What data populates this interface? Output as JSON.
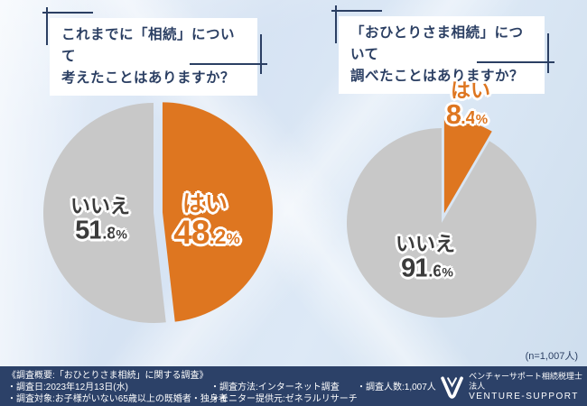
{
  "titles": {
    "left": "これまでに「相続」について\n考えたことはありますか？",
    "right": "「おひとりさま相続」について\n調べたことはありますか？"
  },
  "chart_data": [
    {
      "type": "pie",
      "title": "これまでに「相続」について考えたことはありますか？",
      "slices": [
        {
          "label": "はい",
          "value": 48.2,
          "color": "#de7620"
        },
        {
          "label": "いいえ",
          "value": 51.8,
          "color": "#c8c8c8"
        }
      ],
      "start_angle_deg": 0,
      "exploded_slice": "はい",
      "n": 1007
    },
    {
      "type": "pie",
      "title": "「おひとりさま相続」について調べたことはありますか？",
      "slices": [
        {
          "label": "はい",
          "value": 8.4,
          "color": "#de7620"
        },
        {
          "label": "いいえ",
          "value": 91.6,
          "color": "#c8c8c8"
        }
      ],
      "start_angle_deg": 0,
      "exploded_slice": "はい",
      "n": 1007
    }
  ],
  "sample_note": "(n=1,007人)",
  "footer": {
    "heading": "《調査概要:「おひとりさま相続」に関する調査》",
    "survey_date": "・調査日:2023年12月13日(水)",
    "survey_target": "・調査対象:お子様がいない65歳以上の既婚者・独身者",
    "survey_method": "・調査方法:インターネット調査",
    "monitor_provider": "・モニター提供元:ゼネラルリサーチ",
    "respondents": "・調査人数:1,007人"
  },
  "logo": {
    "company_jp": "ベンチャーサポート相続税理士法人",
    "company_en": "VENTURE-SUPPORT"
  },
  "colors": {
    "accent_orange": "#de7620",
    "pie_gray": "#c8c8c8",
    "navy_text": "#2b3f63",
    "footer_bg": "#2c4168",
    "background": "#d8e4f3"
  }
}
